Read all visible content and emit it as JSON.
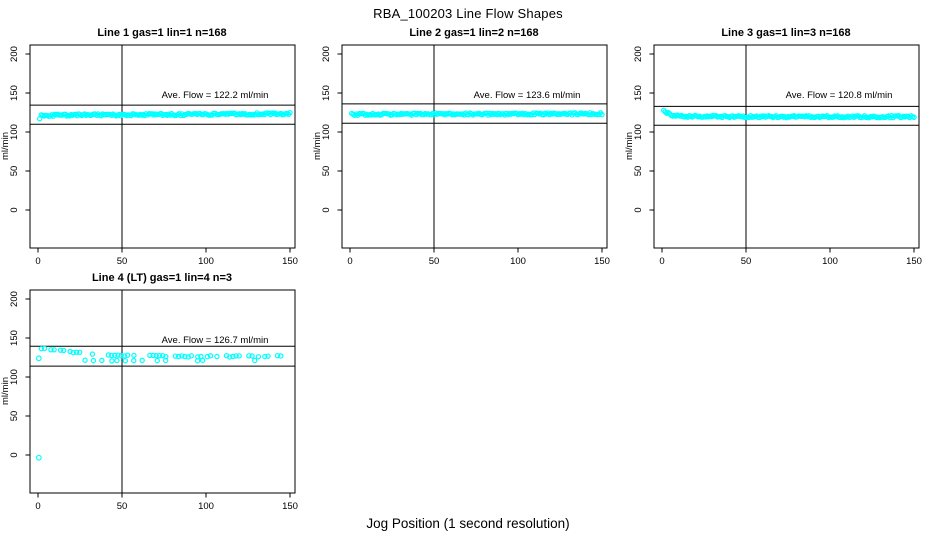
{
  "page": {
    "title": "RBA_100203  Line Flow Shapes",
    "xlabel": "Jog Position (1 second resolution)"
  },
  "colors": {
    "point": "#00ffff",
    "axis": "#000000",
    "background": "#ffffff"
  },
  "chart_data": [
    {
      "type": "scatter",
      "title": "Line 1 gas=1 lin=1 n=168",
      "ylabel": "ml/min",
      "n": 168,
      "xticks": [
        0,
        50,
        100,
        150
      ],
      "yticks": [
        0,
        50,
        100,
        150,
        200
      ],
      "xlim": [
        0,
        150
      ],
      "ave_flow": 122.2,
      "ave_flow_label": "Ave. Flow =  122.2  ml/min",
      "vline_x": 50,
      "tolerance_lines": [
        134.4,
        110.0
      ],
      "density": "dense",
      "spread": 1.4,
      "trend": [
        [
          1,
          117.5
        ],
        [
          2,
          121.2
        ],
        [
          20,
          121.8
        ],
        [
          60,
          122.2
        ],
        [
          100,
          122.6
        ],
        [
          150,
          123.4
        ]
      ],
      "extra_points": [],
      "outliers": []
    },
    {
      "type": "scatter",
      "title": "Line 2 gas=1 lin=2 n=168",
      "ylabel": "ml/min",
      "n": 168,
      "xticks": [
        0,
        50,
        100,
        150
      ],
      "yticks": [
        0,
        50,
        100,
        150,
        200
      ],
      "xlim": [
        0,
        150
      ],
      "ave_flow": 123.6,
      "ave_flow_label": "Ave. Flow =  123.6  ml/min",
      "vline_x": 50,
      "tolerance_lines": [
        136.0,
        111.2
      ],
      "density": "dense",
      "spread": 1.3,
      "trend": [
        [
          1,
          122.6
        ],
        [
          50,
          122.9
        ],
        [
          100,
          123.1
        ],
        [
          150,
          123.4
        ]
      ],
      "extra_points": [],
      "outliers": []
    },
    {
      "type": "scatter",
      "title": "Line 3 gas=1 lin=3 n=168",
      "ylabel": "ml/min",
      "n": 168,
      "xticks": [
        0,
        50,
        100,
        150
      ],
      "yticks": [
        0,
        50,
        100,
        150,
        200
      ],
      "xlim": [
        0,
        150
      ],
      "ave_flow": 120.8,
      "ave_flow_label": "Ave. Flow =  120.8  ml/min",
      "vline_x": 50,
      "tolerance_lines": [
        132.9,
        108.7
      ],
      "density": "dense",
      "spread": 1.3,
      "trend": [
        [
          1,
          128
        ],
        [
          3,
          124.5
        ],
        [
          6,
          121.5
        ],
        [
          12,
          120.2
        ],
        [
          40,
          119.8
        ],
        [
          90,
          119.6
        ],
        [
          150,
          119.6
        ]
      ],
      "extra_points": [],
      "outliers": []
    },
    {
      "type": "scatter",
      "title": "Line 4 (LT) gas=1 lin=4 n=3",
      "ylabel": "ml/min",
      "n": 3,
      "xticks": [
        0,
        50,
        100,
        150
      ],
      "yticks": [
        0,
        50,
        100,
        150,
        200
      ],
      "xlim": [
        0,
        150
      ],
      "ave_flow": 126.7,
      "ave_flow_label": "Ave. Flow =  126.7  ml/min",
      "vline_x": 50,
      "tolerance_lines": [
        139.4,
        114.0
      ],
      "density": "sparse",
      "spread": 0.9,
      "trend": [
        [
          2,
          137
        ],
        [
          8,
          135.5
        ],
        [
          15,
          133.6
        ],
        [
          25,
          131.2
        ],
        [
          35,
          129.2
        ],
        [
          45,
          127.9
        ],
        [
          60,
          127
        ],
        [
          85,
          126.5
        ],
        [
          115,
          126.4
        ],
        [
          150,
          126.6
        ]
      ],
      "extra_points": [
        [
          28,
          121.5
        ],
        [
          33,
          121
        ],
        [
          38,
          121.3
        ],
        [
          44,
          120.6
        ],
        [
          47,
          121.2
        ],
        [
          52,
          120.8
        ],
        [
          57,
          121
        ],
        [
          62,
          121.3
        ],
        [
          71,
          121
        ],
        [
          76,
          121.2
        ],
        [
          95,
          120.8
        ],
        [
          98,
          121.3
        ],
        [
          129,
          121.2
        ]
      ],
      "outliers": [
        [
          0.5,
          124
        ],
        [
          0.5,
          -3.5
        ]
      ]
    }
  ]
}
